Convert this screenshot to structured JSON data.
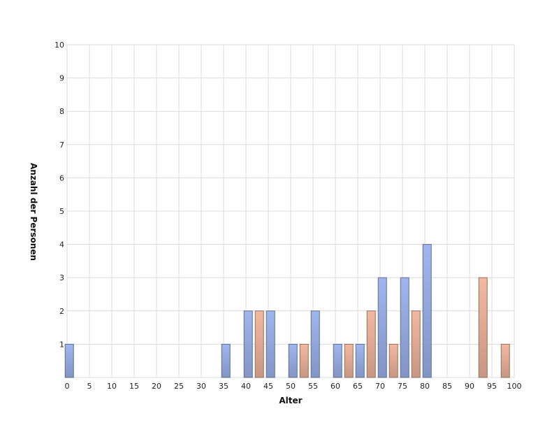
{
  "chart_data": {
    "type": "bar",
    "title": "",
    "xlabel": "Alter",
    "ylabel": "Anzahl der Personen",
    "xlim": [
      0,
      100
    ],
    "ylim": [
      0,
      10
    ],
    "x_ticks": [
      "0",
      "5",
      "10",
      "15",
      "20",
      "25",
      "30",
      "35",
      "40",
      "45",
      "50",
      "55",
      "60",
      "65",
      "70",
      "75",
      "80",
      "85",
      "90",
      "95",
      "100"
    ],
    "y_ticks": [
      "1",
      "2",
      "3",
      "4",
      "5",
      "6",
      "7",
      "8",
      "9",
      "10"
    ],
    "grid": true,
    "series": [
      {
        "color": "#9fb6ee",
        "points": [
          {
            "x": 0.5,
            "y": 1
          },
          {
            "x": 35.5,
            "y": 1
          },
          {
            "x": 40.5,
            "y": 2
          },
          {
            "x": 45.5,
            "y": 2
          },
          {
            "x": 50.5,
            "y": 1
          },
          {
            "x": 55.5,
            "y": 2
          },
          {
            "x": 60.5,
            "y": 1
          },
          {
            "x": 65.5,
            "y": 1
          },
          {
            "x": 70.5,
            "y": 3
          },
          {
            "x": 75.5,
            "y": 3
          },
          {
            "x": 80.5,
            "y": 4
          }
        ]
      },
      {
        "color": "#f3b8a0",
        "points": [
          {
            "x": 43,
            "y": 2
          },
          {
            "x": 53,
            "y": 1
          },
          {
            "x": 63,
            "y": 1
          },
          {
            "x": 68,
            "y": 2
          },
          {
            "x": 73,
            "y": 1
          },
          {
            "x": 78,
            "y": 2
          },
          {
            "x": 93,
            "y": 3
          },
          {
            "x": 98,
            "y": 1
          }
        ]
      }
    ]
  }
}
